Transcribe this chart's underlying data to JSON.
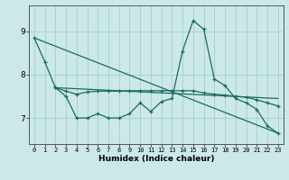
{
  "xlabel": "Humidex (Indice chaleur)",
  "xlim": [
    -0.5,
    23.5
  ],
  "ylim": [
    6.4,
    9.6
  ],
  "yticks": [
    7,
    8,
    9
  ],
  "xticks": [
    0,
    1,
    2,
    3,
    4,
    5,
    6,
    7,
    8,
    9,
    10,
    11,
    12,
    13,
    14,
    15,
    16,
    17,
    18,
    19,
    20,
    21,
    22,
    23
  ],
  "background_color": "#cce8e8",
  "grid_color": "#99cccc",
  "line_color": "#1a6b60",
  "series": {
    "line_zigzag": {
      "x": [
        0,
        1,
        2,
        3,
        4,
        5,
        6,
        7,
        8,
        9,
        10,
        11,
        12,
        13,
        14,
        15,
        16,
        17,
        18,
        19,
        20,
        21,
        22,
        23
      ],
      "y": [
        8.85,
        8.3,
        7.7,
        7.5,
        7.0,
        7.0,
        7.1,
        7.0,
        7.0,
        7.1,
        7.35,
        7.15,
        7.38,
        7.45,
        8.55,
        9.25,
        9.05,
        7.9,
        7.75,
        7.45,
        7.35,
        7.2,
        6.82,
        6.65
      ]
    },
    "line_flat": {
      "x": [
        2,
        3,
        4,
        5,
        6,
        7,
        8,
        9,
        10,
        11,
        12,
        13,
        14,
        15,
        16,
        17,
        18,
        19,
        20,
        21,
        22,
        23
      ],
      "y": [
        7.7,
        7.62,
        7.55,
        7.6,
        7.62,
        7.62,
        7.62,
        7.63,
        7.63,
        7.63,
        7.63,
        7.63,
        7.63,
        7.63,
        7.58,
        7.55,
        7.53,
        7.5,
        7.48,
        7.42,
        7.35,
        7.28
      ]
    },
    "line_diag1": {
      "x": [
        2,
        23
      ],
      "y": [
        7.7,
        7.45
      ]
    },
    "line_diag2": {
      "x": [
        0,
        23
      ],
      "y": [
        8.85,
        6.65
      ]
    }
  }
}
